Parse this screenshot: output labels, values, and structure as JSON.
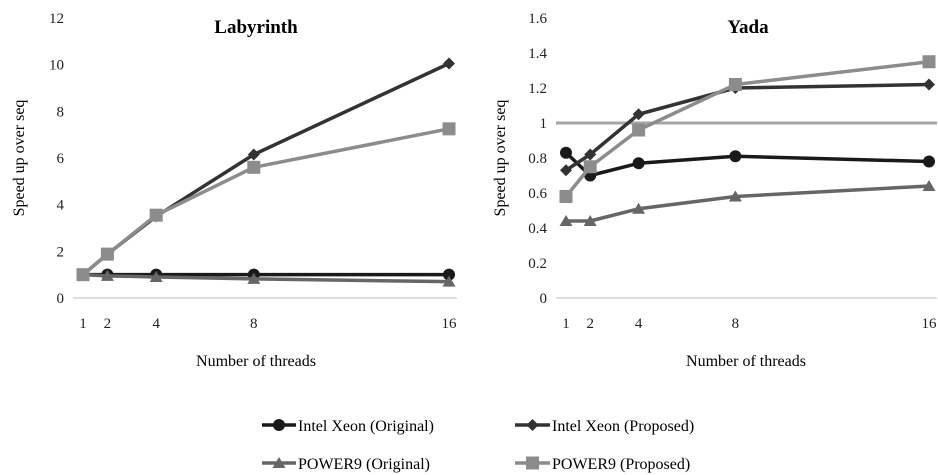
{
  "series_styles": [
    {
      "name": "Intel Xeon (Original)",
      "color": "#1a1a1a",
      "marker": "circle"
    },
    {
      "name": "Intel Xeon (Proposed)",
      "color": "#333333",
      "marker": "diamond"
    },
    {
      "name": "POWER9 (Original)",
      "color": "#666666",
      "marker": "triangle"
    },
    {
      "name": "POWER9 (Proposed)",
      "color": "#8c8c8c",
      "marker": "square"
    }
  ],
  "chart_data": [
    {
      "type": "line",
      "title": "Labyrinth",
      "xlabel": "Number of threads",
      "ylabel": "Speed up over seq",
      "x": [
        1,
        2,
        4,
        8,
        16
      ],
      "x_ticks": [
        "1",
        "2",
        "4",
        "8",
        "16"
      ],
      "y_ticks": [
        "0",
        "2",
        "4",
        "6",
        "8",
        "10",
        "12"
      ],
      "ylim": [
        0,
        12
      ],
      "grid": false,
      "series": [
        {
          "name": "Intel Xeon (Original)",
          "values": [
            1.0,
            1.0,
            1.0,
            1.0,
            1.0
          ]
        },
        {
          "name": "Intel Xeon (Proposed)",
          "values": [
            1.0,
            1.88,
            3.5,
            6.15,
            10.05
          ]
        },
        {
          "name": "POWER9 (Original)",
          "values": [
            1.0,
            0.95,
            0.9,
            0.82,
            0.7
          ]
        },
        {
          "name": "POWER9 (Proposed)",
          "values": [
            1.0,
            1.88,
            3.55,
            5.6,
            7.25
          ]
        }
      ]
    },
    {
      "type": "line",
      "title": "Yada",
      "xlabel": "Number of threads",
      "ylabel": "Speed up over seq",
      "x": [
        1,
        2,
        4,
        8,
        16
      ],
      "x_ticks": [
        "1",
        "2",
        "4",
        "8",
        "16"
      ],
      "y_ticks": [
        "0",
        "0.2",
        "0.4",
        "0.6",
        "0.8",
        "1",
        "1.2",
        "1.4",
        "1.6"
      ],
      "ylim": [
        0,
        1.6
      ],
      "grid": false,
      "reference_line": 1.0,
      "series": [
        {
          "name": "Intel Xeon (Original)",
          "values": [
            0.83,
            0.7,
            0.77,
            0.81,
            0.78
          ]
        },
        {
          "name": "Intel Xeon (Proposed)",
          "values": [
            0.73,
            0.82,
            1.05,
            1.2,
            1.22
          ]
        },
        {
          "name": "POWER9 (Original)",
          "values": [
            0.44,
            0.44,
            0.51,
            0.58,
            0.64
          ]
        },
        {
          "name": "POWER9 (Proposed)",
          "values": [
            0.58,
            0.75,
            0.96,
            1.22,
            1.35
          ]
        }
      ]
    }
  ],
  "legend": {
    "placement": "bottom",
    "items": [
      "Intel Xeon (Original)",
      "Intel Xeon (Proposed)",
      "POWER9 (Original)",
      "POWER9 (Proposed)"
    ]
  }
}
